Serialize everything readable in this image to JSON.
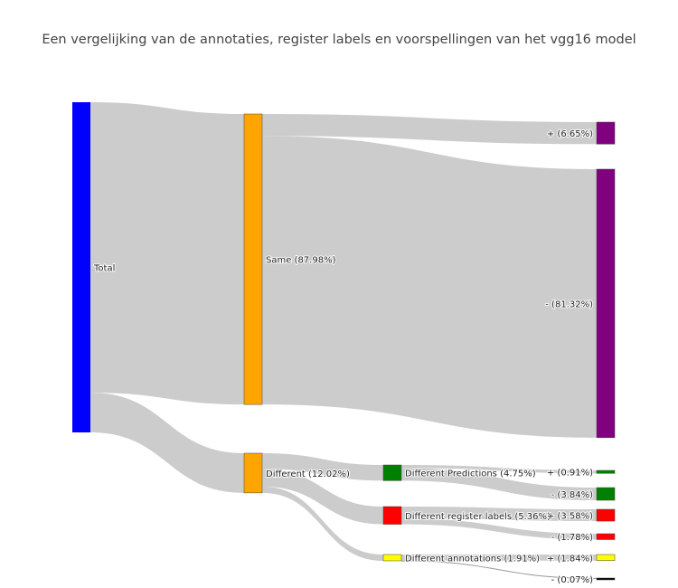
{
  "chart_data": {
    "type": "sankey",
    "title": "Een vergelijking van de annotaties, register labels en voorspellingen van het vgg16 model",
    "nodes": [
      {
        "id": "total",
        "label": "Total",
        "color": "#0000ff"
      },
      {
        "id": "same",
        "label": "Same (87.98%)",
        "color": "#ffa500"
      },
      {
        "id": "different",
        "label": "Different (12.02%)",
        "color": "#ffa500"
      },
      {
        "id": "same_plus",
        "label": "+ (6.65%)",
        "color": "#800080"
      },
      {
        "id": "same_minus",
        "label": "- (81.32%)",
        "color": "#800080"
      },
      {
        "id": "diff_pred",
        "label": "Different Predictions (4.75%)",
        "color": "#008000"
      },
      {
        "id": "diff_reg",
        "label": "Different register labels (5.36%)",
        "color": "#ff0000"
      },
      {
        "id": "diff_ann",
        "label": "Different annotations (1.91%)",
        "color": "#ffff00"
      },
      {
        "id": "pred_plus",
        "label": "+ (0.91%)",
        "color": "#008000"
      },
      {
        "id": "pred_minus",
        "label": "- (3.84%)",
        "color": "#008000"
      },
      {
        "id": "reg_plus",
        "label": "+ (3.58%)",
        "color": "#ff0000"
      },
      {
        "id": "reg_minus",
        "label": "- (1.78%)",
        "color": "#ff0000"
      },
      {
        "id": "ann_plus",
        "label": "+ (1.84%)",
        "color": "#ffff00"
      },
      {
        "id": "ann_minus",
        "label": "- (0.07%)",
        "color": "#000000"
      }
    ],
    "links": [
      {
        "source": "total",
        "target": "same",
        "value": 87.98
      },
      {
        "source": "total",
        "target": "different",
        "value": 12.02
      },
      {
        "source": "same",
        "target": "same_plus",
        "value": 6.65
      },
      {
        "source": "same",
        "target": "same_minus",
        "value": 81.32
      },
      {
        "source": "different",
        "target": "diff_pred",
        "value": 4.75
      },
      {
        "source": "different",
        "target": "diff_reg",
        "value": 5.36
      },
      {
        "source": "different",
        "target": "diff_ann",
        "value": 1.91
      },
      {
        "source": "diff_pred",
        "target": "pred_plus",
        "value": 0.91
      },
      {
        "source": "diff_pred",
        "target": "pred_minus",
        "value": 3.84
      },
      {
        "source": "diff_reg",
        "target": "reg_plus",
        "value": 3.58
      },
      {
        "source": "diff_reg",
        "target": "reg_minus",
        "value": 1.78
      },
      {
        "source": "diff_ann",
        "target": "ann_plus",
        "value": 1.84
      },
      {
        "source": "diff_ann",
        "target": "ann_minus",
        "value": 0.07
      }
    ],
    "link_color": "#cccccc"
  }
}
